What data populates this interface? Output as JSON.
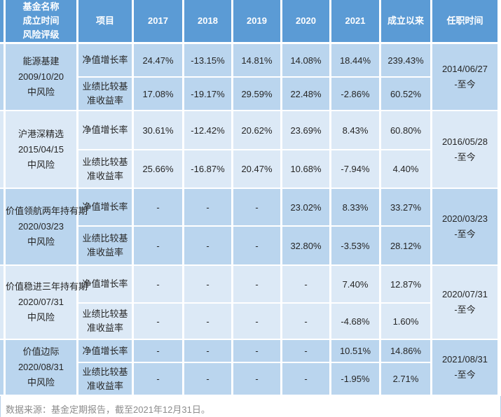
{
  "colors": {
    "header_bg": "#5B9BD5",
    "band_a": "#BAD5EE",
    "band_b": "#DCE9F6",
    "gridline": "#FFFFFF",
    "body_text": "#262626",
    "header_text": "#FFFFFF",
    "footer_text": "#8C8C8C",
    "footer_border": "#B9CFE8"
  },
  "table": {
    "header": {
      "fund_col_lines": [
        "基金名称",
        "成立时间",
        "风险评级"
      ],
      "columns": [
        "项目",
        "2017",
        "2018",
        "2019",
        "2020",
        "2021",
        "成立以来",
        "任职时间"
      ]
    },
    "metric_labels": [
      "净值增长率",
      "业绩比较基准收益率"
    ],
    "funds": [
      {
        "name": "能源基建",
        "inception": "2009/10/20",
        "risk": "中风险",
        "tenure": [
          "2014/06/27",
          "-至今"
        ],
        "nav": [
          "24.47%",
          "-13.15%",
          "14.81%",
          "14.08%",
          "18.44%",
          "239.43%"
        ],
        "benchmark": [
          "17.08%",
          "-19.17%",
          "29.59%",
          "22.48%",
          "-2.86%",
          "60.52%"
        ]
      },
      {
        "name": "沪港深精选",
        "inception": "2015/04/15",
        "risk": "中风险",
        "tenure": [
          "2016/05/28",
          "-至今"
        ],
        "nav": [
          "30.61%",
          "-12.42%",
          "20.62%",
          "23.69%",
          "8.43%",
          "60.80%"
        ],
        "benchmark": [
          "25.66%",
          "-16.87%",
          "20.47%",
          "10.68%",
          "-7.94%",
          "4.40%"
        ]
      },
      {
        "name": "价值领航两年持有期",
        "inception": "2020/03/23",
        "risk": "中风险",
        "tenure": [
          "2020/03/23",
          "-至今"
        ],
        "nav": [
          "-",
          "-",
          "-",
          "23.02%",
          "8.33%",
          "33.27%"
        ],
        "benchmark": [
          "-",
          "-",
          "-",
          "32.80%",
          "-3.53%",
          "28.12%"
        ]
      },
      {
        "name": "价值稳进三年持有期",
        "inception": "2020/07/31",
        "risk": "中风险",
        "tenure": [
          "2020/07/31",
          "-至今"
        ],
        "nav": [
          "-",
          "-",
          "-",
          "-",
          "7.40%",
          "12.87%"
        ],
        "benchmark": [
          "-",
          "-",
          "-",
          "-",
          "-4.68%",
          "1.60%"
        ]
      },
      {
        "name": "价值边际",
        "inception": "2020/08/31",
        "risk": "中风险",
        "tenure": [
          "2021/08/31",
          "-至今"
        ],
        "nav": [
          "-",
          "-",
          "-",
          "-",
          "10.51%",
          "14.86%"
        ],
        "benchmark": [
          "-",
          "-",
          "-",
          "-",
          "-1.95%",
          "2.71%"
        ]
      }
    ]
  },
  "footer": {
    "source_note": "数据来源：基金定期报告，截至2021年12月31日。"
  }
}
